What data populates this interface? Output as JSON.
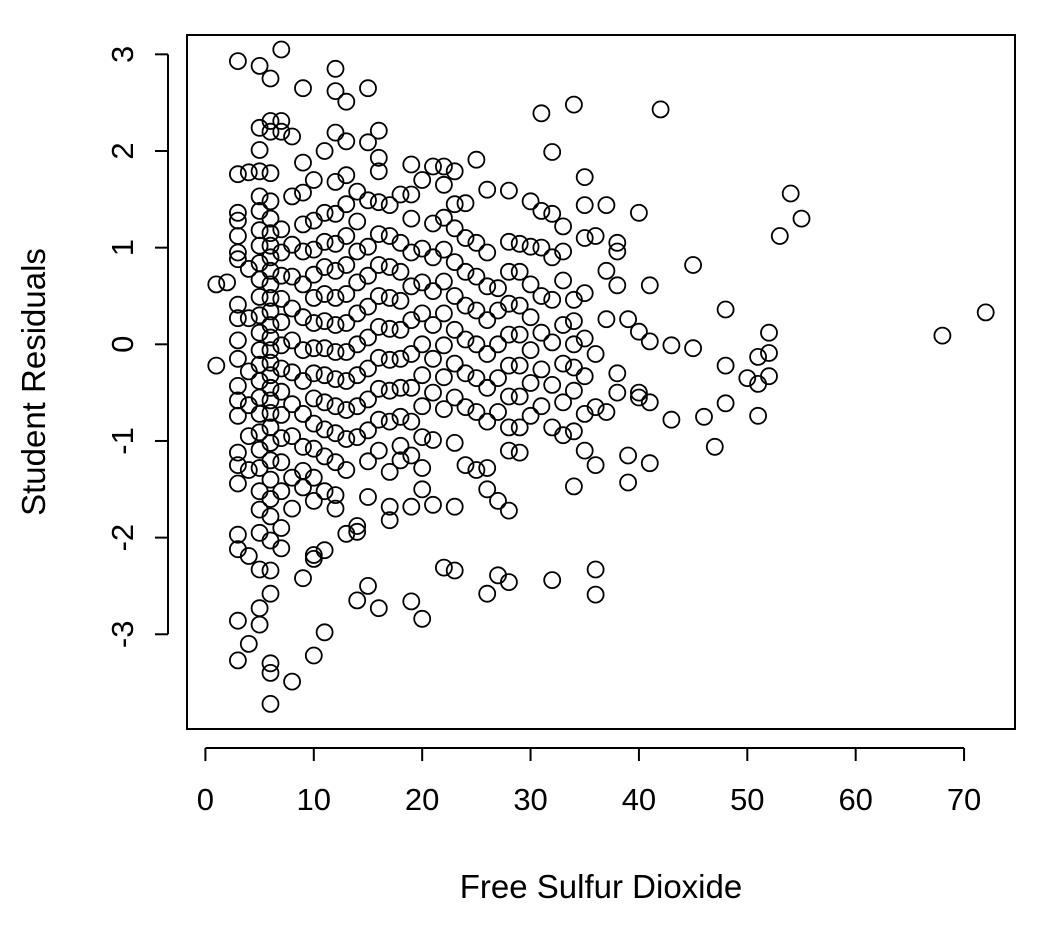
{
  "chart_data": {
    "type": "scatter",
    "title": "",
    "xlabel": "Free Sulfur Dioxide",
    "ylabel": "Student Residuals",
    "xlim": [
      -1.7,
      74.7
    ],
    "ylim": [
      -3.98,
      3.2
    ],
    "xticks": [
      0,
      10,
      20,
      30,
      40,
      50,
      60,
      70
    ],
    "xtick_labels": [
      "0",
      "10",
      "20",
      "30",
      "40",
      "50",
      "60",
      "70"
    ],
    "yticks": [
      3,
      2,
      1,
      0,
      -1,
      -2,
      -3
    ],
    "ytick_labels": [
      "3",
      "2",
      "1",
      "0",
      "-1",
      "-2",
      "-3"
    ],
    "grid": false,
    "legend": "none",
    "marker": "open-circle",
    "color": "#000000",
    "points": [
      [
        1,
        0.62
      ],
      [
        1,
        -0.22
      ],
      [
        2,
        0.64
      ],
      [
        3,
        2.93
      ],
      [
        3,
        1.76
      ],
      [
        3,
        1.36
      ],
      [
        3,
        1.28
      ],
      [
        3,
        1.12
      ],
      [
        3,
        0.95
      ],
      [
        3,
        0.88
      ],
      [
        3,
        0.41
      ],
      [
        3,
        0.27
      ],
      [
        3,
        0.04
      ],
      [
        3,
        -0.15
      ],
      [
        3,
        -0.43
      ],
      [
        3,
        -0.58
      ],
      [
        3,
        -0.74
      ],
      [
        3,
        -1.12
      ],
      [
        3,
        -1.25
      ],
      [
        3,
        -1.44
      ],
      [
        3,
        -1.97
      ],
      [
        3,
        -2.12
      ],
      [
        3,
        -2.86
      ],
      [
        3,
        -3.27
      ],
      [
        4,
        1.78
      ],
      [
        4,
        0.78
      ],
      [
        4,
        0.27
      ],
      [
        4,
        -0.28
      ],
      [
        4,
        -0.63
      ],
      [
        4,
        -0.95
      ],
      [
        4,
        -1.3
      ],
      [
        4,
        -2.19
      ],
      [
        4,
        -3.1
      ],
      [
        5,
        2.88
      ],
      [
        5,
        2.24
      ],
      [
        5,
        2.01
      ],
      [
        5,
        1.79
      ],
      [
        5,
        1.53
      ],
      [
        5,
        1.38
      ],
      [
        5,
        1.18
      ],
      [
        5,
        1.02
      ],
      [
        5,
        0.84
      ],
      [
        5,
        0.67
      ],
      [
        5,
        0.49
      ],
      [
        5,
        0.3
      ],
      [
        5,
        0.12
      ],
      [
        5,
        -0.06
      ],
      [
        5,
        -0.21
      ],
      [
        5,
        -0.38
      ],
      [
        5,
        -0.55
      ],
      [
        5,
        -0.72
      ],
      [
        5,
        -0.91
      ],
      [
        5,
        -1.09
      ],
      [
        5,
        -1.28
      ],
      [
        5,
        -1.52
      ],
      [
        5,
        -1.71
      ],
      [
        5,
        -1.95
      ],
      [
        5,
        -2.33
      ],
      [
        5,
        -2.73
      ],
      [
        5,
        -2.9
      ],
      [
        6,
        2.75
      ],
      [
        6,
        2.31
      ],
      [
        6,
        2.2
      ],
      [
        6,
        1.77
      ],
      [
        6,
        1.48
      ],
      [
        6,
        1.3
      ],
      [
        6,
        1.15
      ],
      [
        6,
        1.02
      ],
      [
        6,
        0.9
      ],
      [
        6,
        0.76
      ],
      [
        6,
        0.62
      ],
      [
        6,
        0.48
      ],
      [
        6,
        0.34
      ],
      [
        6,
        0.2
      ],
      [
        6,
        0.07
      ],
      [
        6,
        -0.06
      ],
      [
        6,
        -0.19
      ],
      [
        6,
        -0.32
      ],
      [
        6,
        -0.45
      ],
      [
        6,
        -0.58
      ],
      [
        6,
        -0.71
      ],
      [
        6,
        -0.86
      ],
      [
        6,
        -1.02
      ],
      [
        6,
        -1.2
      ],
      [
        6,
        -1.4
      ],
      [
        6,
        -1.6
      ],
      [
        6,
        -1.78
      ],
      [
        6,
        -2.03
      ],
      [
        6,
        -2.34
      ],
      [
        6,
        -2.58
      ],
      [
        6,
        -3.3
      ],
      [
        6,
        -3.4
      ],
      [
        6,
        -3.72
      ],
      [
        7,
        3.05
      ],
      [
        7,
        2.31
      ],
      [
        7,
        2.2
      ],
      [
        7,
        1.19
      ],
      [
        7,
        0.95
      ],
      [
        7,
        0.71
      ],
      [
        7,
        0.47
      ],
      [
        7,
        0.23
      ],
      [
        7,
        -0.01
      ],
      [
        7,
        -0.25
      ],
      [
        7,
        -0.49
      ],
      [
        7,
        -0.73
      ],
      [
        7,
        -0.97
      ],
      [
        7,
        -1.22
      ],
      [
        7,
        -1.52
      ],
      [
        7,
        -1.9
      ],
      [
        7,
        -2.11
      ],
      [
        8,
        2.15
      ],
      [
        8,
        1.53
      ],
      [
        8,
        1.03
      ],
      [
        8,
        0.7
      ],
      [
        8,
        0.37
      ],
      [
        8,
        0.04
      ],
      [
        8,
        -0.29
      ],
      [
        8,
        -0.62
      ],
      [
        8,
        -0.95
      ],
      [
        8,
        -1.38
      ],
      [
        8,
        -1.7
      ],
      [
        8,
        -3.49
      ],
      [
        9,
        2.65
      ],
      [
        9,
        1.88
      ],
      [
        9,
        1.57
      ],
      [
        9,
        1.24
      ],
      [
        9,
        0.96
      ],
      [
        9,
        0.62
      ],
      [
        9,
        0.28
      ],
      [
        9,
        -0.06
      ],
      [
        9,
        -0.38
      ],
      [
        9,
        -0.72
      ],
      [
        9,
        -1.06
      ],
      [
        9,
        -1.31
      ],
      [
        9,
        -1.48
      ],
      [
        9,
        -2.42
      ],
      [
        10,
        1.7
      ],
      [
        10,
        1.28
      ],
      [
        10,
        0.98
      ],
      [
        10,
        0.72
      ],
      [
        10,
        0.48
      ],
      [
        10,
        0.22
      ],
      [
        10,
        -0.04
      ],
      [
        10,
        -0.3
      ],
      [
        10,
        -0.56
      ],
      [
        10,
        -0.82
      ],
      [
        10,
        -1.08
      ],
      [
        10,
        -1.38
      ],
      [
        10,
        -1.62
      ],
      [
        10,
        -2.18
      ],
      [
        10,
        -2.22
      ],
      [
        10,
        -3.22
      ],
      [
        11,
        2.0
      ],
      [
        11,
        1.36
      ],
      [
        11,
        1.06
      ],
      [
        11,
        0.8
      ],
      [
        11,
        0.52
      ],
      [
        11,
        0.24
      ],
      [
        11,
        -0.04
      ],
      [
        11,
        -0.32
      ],
      [
        11,
        -0.6
      ],
      [
        11,
        -0.88
      ],
      [
        11,
        -1.16
      ],
      [
        11,
        -1.52
      ],
      [
        11,
        -2.13
      ],
      [
        11,
        -2.98
      ],
      [
        12,
        2.85
      ],
      [
        12,
        2.62
      ],
      [
        12,
        2.19
      ],
      [
        12,
        1.68
      ],
      [
        12,
        1.35
      ],
      [
        12,
        1.04
      ],
      [
        12,
        0.76
      ],
      [
        12,
        0.48
      ],
      [
        12,
        0.2
      ],
      [
        12,
        -0.08
      ],
      [
        12,
        -0.36
      ],
      [
        12,
        -0.64
      ],
      [
        12,
        -0.92
      ],
      [
        12,
        -1.22
      ],
      [
        12,
        -1.56
      ],
      [
        12,
        -1.7
      ],
      [
        13,
        2.51
      ],
      [
        13,
        2.1
      ],
      [
        13,
        1.75
      ],
      [
        13,
        1.45
      ],
      [
        13,
        1.12
      ],
      [
        13,
        0.82
      ],
      [
        13,
        0.52
      ],
      [
        13,
        0.22
      ],
      [
        13,
        -0.08
      ],
      [
        13,
        -0.38
      ],
      [
        13,
        -0.68
      ],
      [
        13,
        -0.98
      ],
      [
        13,
        -1.3
      ],
      [
        13,
        -1.96
      ],
      [
        14,
        1.58
      ],
      [
        14,
        1.27
      ],
      [
        14,
        0.96
      ],
      [
        14,
        0.64
      ],
      [
        14,
        0.32
      ],
      [
        14,
        0.0
      ],
      [
        14,
        -0.32
      ],
      [
        14,
        -0.64
      ],
      [
        14,
        -0.96
      ],
      [
        14,
        -1.88
      ],
      [
        14,
        -1.94
      ],
      [
        14,
        -2.65
      ],
      [
        15,
        2.65
      ],
      [
        15,
        2.09
      ],
      [
        15,
        1.49
      ],
      [
        15,
        1.01
      ],
      [
        15,
        0.71
      ],
      [
        15,
        0.39
      ],
      [
        15,
        0.07
      ],
      [
        15,
        -0.25
      ],
      [
        15,
        -0.57
      ],
      [
        15,
        -0.89
      ],
      [
        15,
        -1.21
      ],
      [
        15,
        -1.58
      ],
      [
        15,
        -2.5
      ],
      [
        16,
        2.21
      ],
      [
        16,
        1.93
      ],
      [
        16,
        1.79
      ],
      [
        16,
        1.47
      ],
      [
        16,
        1.14
      ],
      [
        16,
        0.82
      ],
      [
        16,
        0.5
      ],
      [
        16,
        0.18
      ],
      [
        16,
        -0.14
      ],
      [
        16,
        -0.46
      ],
      [
        16,
        -0.78
      ],
      [
        16,
        -1.1
      ],
      [
        16,
        -2.73
      ],
      [
        17,
        1.44
      ],
      [
        17,
        1.12
      ],
      [
        17,
        0.8
      ],
      [
        17,
        0.48
      ],
      [
        17,
        0.16
      ],
      [
        17,
        -0.16
      ],
      [
        17,
        -0.48
      ],
      [
        17,
        -0.8
      ],
      [
        17,
        -1.32
      ],
      [
        17,
        -1.68
      ],
      [
        17,
        -1.82
      ],
      [
        18,
        1.55
      ],
      [
        18,
        1.05
      ],
      [
        18,
        0.75
      ],
      [
        18,
        0.45
      ],
      [
        18,
        0.15
      ],
      [
        18,
        -0.15
      ],
      [
        18,
        -0.45
      ],
      [
        18,
        -0.75
      ],
      [
        18,
        -1.05
      ],
      [
        18,
        -1.2
      ],
      [
        19,
        1.86
      ],
      [
        19,
        1.55
      ],
      [
        19,
        1.3
      ],
      [
        19,
        0.95
      ],
      [
        19,
        0.6
      ],
      [
        19,
        0.25
      ],
      [
        19,
        -0.1
      ],
      [
        19,
        -0.45
      ],
      [
        19,
        -0.8
      ],
      [
        19,
        -1.15
      ],
      [
        19,
        -1.68
      ],
      [
        19,
        -2.66
      ],
      [
        20,
        1.7
      ],
      [
        20,
        0.99
      ],
      [
        20,
        0.64
      ],
      [
        20,
        0.32
      ],
      [
        20,
        0.0
      ],
      [
        20,
        -0.32
      ],
      [
        20,
        -0.64
      ],
      [
        20,
        -0.96
      ],
      [
        20,
        -1.28
      ],
      [
        20,
        -1.5
      ],
      [
        20,
        -2.84
      ],
      [
        21,
        1.84
      ],
      [
        21,
        1.25
      ],
      [
        21,
        0.9
      ],
      [
        21,
        0.55
      ],
      [
        21,
        0.2
      ],
      [
        21,
        -0.15
      ],
      [
        21,
        -0.5
      ],
      [
        21,
        -0.99
      ],
      [
        21,
        -1.66
      ],
      [
        22,
        1.84
      ],
      [
        22,
        1.65
      ],
      [
        22,
        1.31
      ],
      [
        22,
        0.98
      ],
      [
        22,
        0.65
      ],
      [
        22,
        0.32
      ],
      [
        22,
        -0.01
      ],
      [
        22,
        -0.34
      ],
      [
        22,
        -0.67
      ],
      [
        22,
        -2.31
      ],
      [
        23,
        1.79
      ],
      [
        23,
        1.45
      ],
      [
        23,
        1.2
      ],
      [
        23,
        0.85
      ],
      [
        23,
        0.5
      ],
      [
        23,
        0.15
      ],
      [
        23,
        -0.2
      ],
      [
        23,
        -0.55
      ],
      [
        23,
        -1.02
      ],
      [
        23,
        -1.68
      ],
      [
        23,
        -2.34
      ],
      [
        24,
        1.46
      ],
      [
        24,
        1.1
      ],
      [
        24,
        0.75
      ],
      [
        24,
        0.4
      ],
      [
        24,
        0.05
      ],
      [
        24,
        -0.3
      ],
      [
        24,
        -0.65
      ],
      [
        24,
        -1.25
      ],
      [
        25,
        1.91
      ],
      [
        25,
        1.05
      ],
      [
        25,
        0.7
      ],
      [
        25,
        0.35
      ],
      [
        25,
        0.0
      ],
      [
        25,
        -0.35
      ],
      [
        25,
        -0.7
      ],
      [
        25,
        -1.3
      ],
      [
        26,
        1.6
      ],
      [
        26,
        0.95
      ],
      [
        26,
        0.6
      ],
      [
        26,
        0.25
      ],
      [
        26,
        -0.1
      ],
      [
        26,
        -0.45
      ],
      [
        26,
        -0.8
      ],
      [
        26,
        -1.28
      ],
      [
        26,
        -1.5
      ],
      [
        26,
        -2.58
      ],
      [
        27,
        0.58
      ],
      [
        27,
        0.35
      ],
      [
        27,
        0.0
      ],
      [
        27,
        -0.35
      ],
      [
        27,
        -0.7
      ],
      [
        27,
        -1.62
      ],
      [
        27,
        -2.39
      ],
      [
        28,
        1.59
      ],
      [
        28,
        1.06
      ],
      [
        28,
        0.75
      ],
      [
        28,
        0.42
      ],
      [
        28,
        0.1
      ],
      [
        28,
        -0.22
      ],
      [
        28,
        -0.54
      ],
      [
        28,
        -0.86
      ],
      [
        28,
        -1.1
      ],
      [
        28,
        -1.72
      ],
      [
        28,
        -2.46
      ],
      [
        29,
        1.04
      ],
      [
        29,
        0.75
      ],
      [
        29,
        0.4
      ],
      [
        29,
        0.1
      ],
      [
        29,
        -0.22
      ],
      [
        29,
        -0.54
      ],
      [
        29,
        -0.86
      ],
      [
        29,
        -1.12
      ],
      [
        30,
        1.48
      ],
      [
        30,
        1.01
      ],
      [
        30,
        0.62
      ],
      [
        30,
        0.28
      ],
      [
        30,
        -0.06
      ],
      [
        30,
        -0.4
      ],
      [
        30,
        -0.74
      ],
      [
        31,
        2.39
      ],
      [
        31,
        1.38
      ],
      [
        31,
        1.0
      ],
      [
        31,
        0.5
      ],
      [
        31,
        0.12
      ],
      [
        31,
        -0.26
      ],
      [
        31,
        -0.64
      ],
      [
        32,
        1.99
      ],
      [
        32,
        1.35
      ],
      [
        32,
        0.9
      ],
      [
        32,
        0.46
      ],
      [
        32,
        0.02
      ],
      [
        32,
        -0.42
      ],
      [
        32,
        -0.86
      ],
      [
        32,
        -2.44
      ],
      [
        33,
        1.22
      ],
      [
        33,
        0.96
      ],
      [
        33,
        0.66
      ],
      [
        33,
        0.2
      ],
      [
        33,
        -0.2
      ],
      [
        33,
        -0.6
      ],
      [
        33,
        -0.94
      ],
      [
        34,
        2.48
      ],
      [
        34,
        0.46
      ],
      [
        34,
        0.24
      ],
      [
        34,
        0.0
      ],
      [
        34,
        -0.24
      ],
      [
        34,
        -0.48
      ],
      [
        34,
        -0.9
      ],
      [
        34,
        -1.47
      ],
      [
        35,
        1.73
      ],
      [
        35,
        1.44
      ],
      [
        35,
        1.1
      ],
      [
        35,
        0.53
      ],
      [
        35,
        0.06
      ],
      [
        35,
        -0.33
      ],
      [
        35,
        -0.72
      ],
      [
        35,
        -1.1
      ],
      [
        36,
        1.12
      ],
      [
        36,
        -0.1
      ],
      [
        36,
        -0.65
      ],
      [
        36,
        -1.25
      ],
      [
        36,
        -2.33
      ],
      [
        36,
        -2.59
      ],
      [
        37,
        1.44
      ],
      [
        37,
        0.76
      ],
      [
        37,
        0.26
      ],
      [
        37,
        -0.7
      ],
      [
        38,
        1.05
      ],
      [
        38,
        0.96
      ],
      [
        38,
        0.61
      ],
      [
        38,
        -0.3
      ],
      [
        38,
        -0.5
      ],
      [
        39,
        0.26
      ],
      [
        39,
        -1.15
      ],
      [
        39,
        -1.43
      ],
      [
        40,
        1.36
      ],
      [
        40,
        0.13
      ],
      [
        40,
        -0.5
      ],
      [
        40,
        -0.55
      ],
      [
        41,
        0.61
      ],
      [
        41,
        0.03
      ],
      [
        41,
        -0.6
      ],
      [
        41,
        -1.23
      ],
      [
        43,
        -0.01
      ],
      [
        43,
        -0.78
      ],
      [
        42,
        2.43
      ],
      [
        45,
        0.82
      ],
      [
        45,
        -0.04
      ],
      [
        46,
        -0.75
      ],
      [
        47,
        -1.06
      ],
      [
        48,
        0.36
      ],
      [
        48,
        -0.22
      ],
      [
        48,
        -0.61
      ],
      [
        50,
        -0.35
      ],
      [
        51,
        -0.13
      ],
      [
        51,
        -0.41
      ],
      [
        51,
        -0.74
      ],
      [
        52,
        0.12
      ],
      [
        52,
        -0.09
      ],
      [
        52,
        -0.33
      ],
      [
        53,
        1.12
      ],
      [
        54,
        1.56
      ],
      [
        55,
        1.3
      ],
      [
        68,
        0.09
      ],
      [
        72,
        0.33
      ]
    ]
  }
}
